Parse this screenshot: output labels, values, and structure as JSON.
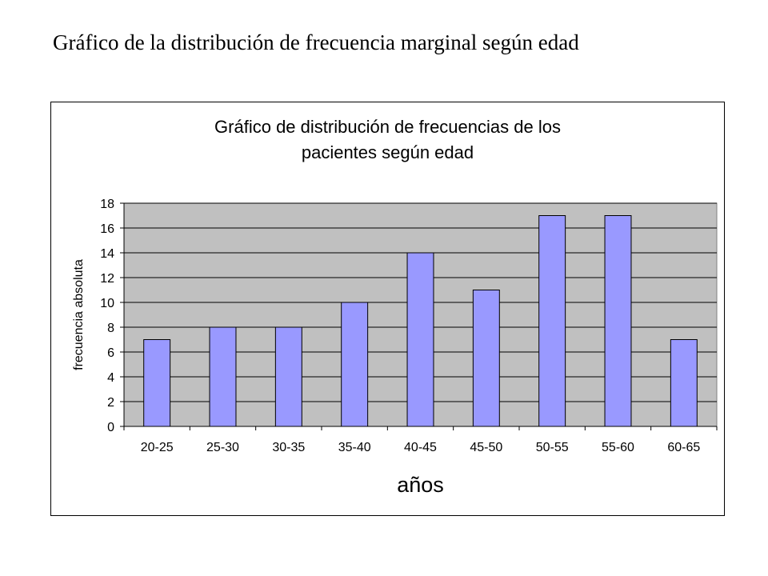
{
  "page": {
    "title": "Gráfico de la distribución de frecuencia marginal según edad"
  },
  "chart_data": {
    "type": "bar",
    "title_lines": [
      "Gráfico de distribución de frecuencias de los",
      "pacientes según edad"
    ],
    "xlabel": "años",
    "ylabel": "frecuencia absoluta",
    "categories": [
      "20-25",
      "25-30",
      "30-35",
      "35-40",
      "40-45",
      "45-50",
      "50-55",
      "55-60",
      "60-65"
    ],
    "values": [
      7,
      8,
      8,
      10,
      14,
      11,
      17,
      17,
      7
    ],
    "ylim": [
      0,
      18
    ],
    "yticks": [
      0,
      2,
      4,
      6,
      8,
      10,
      12,
      14,
      16,
      18
    ],
    "grid": true,
    "legend": "none",
    "colors": {
      "bar_fill": "#9999ff",
      "plot_background": "#c0c0c0",
      "gridline": "#000000"
    }
  }
}
